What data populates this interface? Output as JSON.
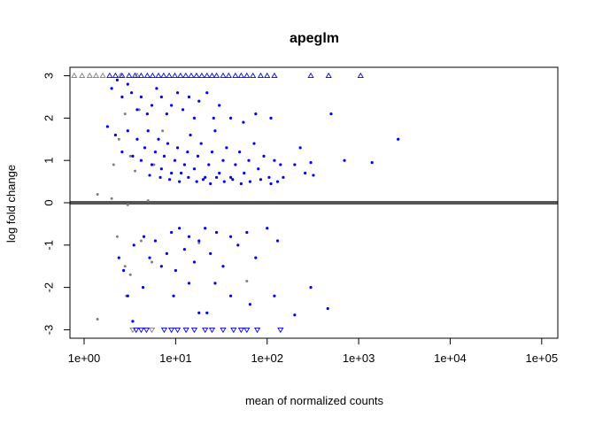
{
  "chart_data": {
    "type": "scatter",
    "title": "apeglm",
    "xlabel": "mean of normalized counts",
    "ylabel": "log fold change",
    "x_scale": "log10",
    "xlim": [
      0.7,
      150000
    ],
    "ylim": [
      -3.2,
      3.2
    ],
    "x_ticks": [
      {
        "value": 1,
        "label": "1e+00"
      },
      {
        "value": 10,
        "label": "1e+01"
      },
      {
        "value": 100,
        "label": "1e+02"
      },
      {
        "value": 1000,
        "label": "1e+03"
      },
      {
        "value": 10000,
        "label": "1e+04"
      },
      {
        "value": 100000,
        "label": "1e+05"
      }
    ],
    "y_ticks": [
      {
        "value": -3,
        "label": "-3"
      },
      {
        "value": -2,
        "label": "-2"
      },
      {
        "value": -1,
        "label": "-1"
      },
      {
        "value": 0,
        "label": "0"
      },
      {
        "value": 1,
        "label": "1"
      },
      {
        "value": 2,
        "label": "2"
      },
      {
        "value": 3,
        "label": "3"
      }
    ],
    "grid": false,
    "legend": "none",
    "colors": {
      "significant": "#0000ff",
      "not_significant": "#7f7f7f",
      "zero_line": "#555555"
    },
    "significant_points": [
      [
        1.8,
        1.8
      ],
      [
        2.0,
        2.7
      ],
      [
        2.3,
        2.9
      ],
      [
        2.6,
        2.5
      ],
      [
        3.0,
        2.8
      ],
      [
        3.3,
        2.6
      ],
      [
        3.8,
        2.2
      ],
      [
        4.2,
        2.5
      ],
      [
        4.9,
        2.1
      ],
      [
        5.5,
        2.3
      ],
      [
        6.2,
        2.7
      ],
      [
        7.0,
        2.5
      ],
      [
        8.0,
        2.1
      ],
      [
        9.0,
        2.3
      ],
      [
        10.5,
        2.6
      ],
      [
        12.0,
        2.2
      ],
      [
        14.0,
        2.5
      ],
      [
        16.0,
        2.0
      ],
      [
        18.0,
        2.4
      ],
      [
        22.0,
        2.6
      ],
      [
        26.0,
        2.0
      ],
      [
        30.0,
        2.3
      ],
      [
        40.0,
        2.0
      ],
      [
        55.0,
        1.9
      ],
      [
        75.0,
        2.1
      ],
      [
        110.0,
        2.0
      ],
      [
        2.2,
        1.6
      ],
      [
        2.6,
        1.2
      ],
      [
        3.0,
        1.7
      ],
      [
        3.4,
        1.1
      ],
      [
        3.8,
        1.5
      ],
      [
        4.2,
        1.0
      ],
      [
        4.6,
        1.3
      ],
      [
        5.0,
        1.7
      ],
      [
        5.5,
        0.9
      ],
      [
        6.0,
        1.2
      ],
      [
        6.5,
        1.5
      ],
      [
        7.0,
        0.8
      ],
      [
        7.5,
        1.1
      ],
      [
        8.2,
        1.4
      ],
      [
        9.0,
        0.7
      ],
      [
        9.8,
        1.0
      ],
      [
        10.5,
        1.3
      ],
      [
        11.5,
        0.7
      ],
      [
        12.5,
        0.9
      ],
      [
        13.5,
        1.2
      ],
      [
        14.5,
        1.6
      ],
      [
        16.0,
        0.8
      ],
      [
        17.5,
        1.1
      ],
      [
        19.0,
        1.4
      ],
      [
        21.0,
        0.6
      ],
      [
        23.0,
        0.9
      ],
      [
        25.0,
        1.2
      ],
      [
        27.0,
        1.7
      ],
      [
        30.0,
        0.7
      ],
      [
        33.0,
        1.0
      ],
      [
        36.0,
        1.3
      ],
      [
        40.0,
        0.6
      ],
      [
        45.0,
        0.9
      ],
      [
        50.0,
        1.2
      ],
      [
        56.0,
        0.7
      ],
      [
        63.0,
        1.0
      ],
      [
        72.0,
        1.4
      ],
      [
        80.0,
        0.8
      ],
      [
        92.0,
        1.1
      ],
      [
        105.0,
        0.6
      ],
      [
        120.0,
        1.0
      ],
      [
        140.0,
        0.9
      ],
      [
        5.2,
        0.65
      ],
      [
        6.8,
        0.6
      ],
      [
        8.6,
        0.55
      ],
      [
        11.0,
        0.5
      ],
      [
        13.8,
        0.6
      ],
      [
        17.0,
        0.5
      ],
      [
        20.0,
        0.55
      ],
      [
        24.0,
        0.45
      ],
      [
        28.0,
        0.6
      ],
      [
        34.0,
        0.5
      ],
      [
        42.0,
        0.55
      ],
      [
        52.0,
        0.45
      ],
      [
        65.0,
        0.5
      ],
      [
        85.0,
        0.55
      ],
      [
        110.0,
        0.45
      ],
      [
        130.0,
        0.5
      ],
      [
        150.0,
        0.6
      ],
      [
        200.0,
        0.9
      ],
      [
        230.0,
        1.3
      ],
      [
        260.0,
        0.7
      ],
      [
        300.0,
        0.95
      ],
      [
        320.0,
        0.65
      ],
      [
        500.0,
        2.1
      ],
      [
        700.0,
        1.0
      ],
      [
        1400.0,
        0.95
      ],
      [
        2700.0,
        1.5
      ],
      [
        3.5,
        -1.0
      ],
      [
        4.5,
        -0.8
      ],
      [
        5.2,
        -1.3
      ],
      [
        6.0,
        -0.9
      ],
      [
        7.0,
        -1.5
      ],
      [
        8.0,
        -1.2
      ],
      [
        9.0,
        -0.7
      ],
      [
        10.0,
        -1.6
      ],
      [
        11.0,
        -0.6
      ],
      [
        12.5,
        -1.1
      ],
      [
        14.0,
        -0.8
      ],
      [
        16.0,
        -1.4
      ],
      [
        18.0,
        -0.9
      ],
      [
        21.0,
        -0.6
      ],
      [
        24.0,
        -1.2
      ],
      [
        28.0,
        -0.7
      ],
      [
        33.0,
        -1.5
      ],
      [
        40.0,
        -0.8
      ],
      [
        48.0,
        -1.0
      ],
      [
        60.0,
        -0.7
      ],
      [
        75.0,
        -1.3
      ],
      [
        100.0,
        -0.6
      ],
      [
        130.0,
        -0.9
      ],
      [
        2.4,
        -1.3
      ],
      [
        2.7,
        -1.6
      ],
      [
        3.0,
        -2.2
      ],
      [
        3.4,
        -2.8
      ],
      [
        4.4,
        -2.0
      ],
      [
        9.5,
        -2.2
      ],
      [
        14.0,
        -1.9
      ],
      [
        18.0,
        -2.6
      ],
      [
        22.0,
        -2.6
      ],
      [
        27.0,
        -1.9
      ],
      [
        40.0,
        -2.2
      ],
      [
        65.0,
        -2.4
      ],
      [
        120.0,
        -2.2
      ],
      [
        200.0,
        -2.65
      ],
      [
        300.0,
        -2.0
      ],
      [
        460.0,
        -2.5
      ]
    ],
    "not_significant_points": [
      [
        2.1,
        0.9
      ],
      [
        2.4,
        1.5
      ],
      [
        2.8,
        2.1
      ],
      [
        3.2,
        1.1
      ],
      [
        3.6,
        0.75
      ],
      [
        4.0,
        2.2
      ],
      [
        5.8,
        0.9
      ],
      [
        7.2,
        1.7
      ],
      [
        2.3,
        -0.8
      ],
      [
        2.8,
        -1.5
      ],
      [
        3.2,
        -1.7
      ],
      [
        4.2,
        -0.9
      ],
      [
        5.5,
        -1.4
      ],
      [
        1.4,
        -2.75
      ],
      [
        2.9,
        -2.2
      ],
      [
        18.0,
        -0.95
      ],
      [
        60.0,
        -1.85
      ],
      [
        1.4,
        0.2
      ],
      [
        2.0,
        0.1
      ],
      [
        3.0,
        -0.05
      ],
      [
        5.0,
        0.05
      ]
    ],
    "significant_capped_up": [
      1.9,
      2.2,
      2.6,
      3.1,
      3.6,
      4.2,
      4.9,
      5.6,
      6.5,
      7.4,
      8.5,
      9.8,
      11.3,
      12.9,
      14.8,
      16.9,
      19.3,
      22.0,
      25.0,
      28.0,
      33.0,
      38.0,
      45.0,
      52.0,
      60.0,
      70.0,
      85.0,
      100.0,
      120.0,
      300.0,
      470.0,
      1050.0
    ],
    "not_significant_capped_up": [
      0.78,
      0.95,
      1.15,
      1.35,
      1.6,
      2.5,
      3.8
    ],
    "significant_capped_down": [
      3.7,
      4.2,
      4.8,
      7.5,
      9.0,
      10.5,
      13.0,
      16.0,
      21.0,
      25.0,
      33.0,
      43.0,
      52.0,
      60.0,
      78.0,
      140.0
    ],
    "not_significant_capped_down": [
      3.4,
      5.5
    ]
  }
}
